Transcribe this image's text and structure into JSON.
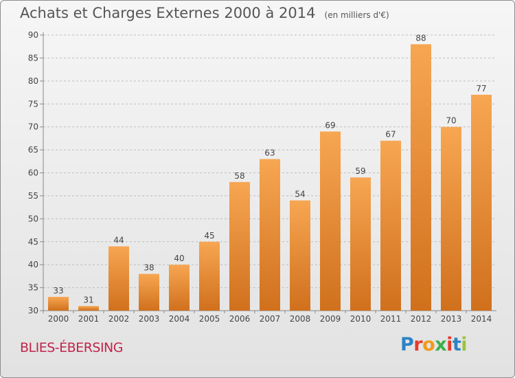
{
  "header": {
    "title": "Achats et Charges Externes 2000 à 2014",
    "unit": "(en milliers d'€)"
  },
  "footer": {
    "place": "BLIES-ÉBERSING",
    "logo_letters": [
      "P",
      "r",
      "o",
      "x",
      "i",
      "t",
      "i"
    ],
    "logo_colors": [
      "#2a83c6",
      "#e63a2b",
      "#f09a1c",
      "#3bb04a",
      "#e63a2b",
      "#2a83c6",
      "#9bc33b"
    ]
  },
  "colors": {
    "bar_light": "#f7a652",
    "bar_dark": "#d0701d",
    "axis": "#888888",
    "grid": "#bdbdbd",
    "text": "#444444"
  },
  "chart_data": {
    "type": "bar",
    "categories": [
      "2000",
      "2001",
      "2002",
      "2003",
      "2004",
      "2005",
      "2006",
      "2007",
      "2008",
      "2009",
      "2010",
      "2011",
      "2012",
      "2013",
      "2014"
    ],
    "values": [
      33,
      31,
      44,
      38,
      40,
      45,
      58,
      63,
      54,
      69,
      59,
      67,
      88,
      70,
      77
    ],
    "ylim": [
      30,
      90
    ],
    "yticks": [
      30,
      35,
      40,
      45,
      50,
      55,
      60,
      65,
      70,
      75,
      80,
      85,
      90
    ],
    "grid": true,
    "data_labels": true
  }
}
